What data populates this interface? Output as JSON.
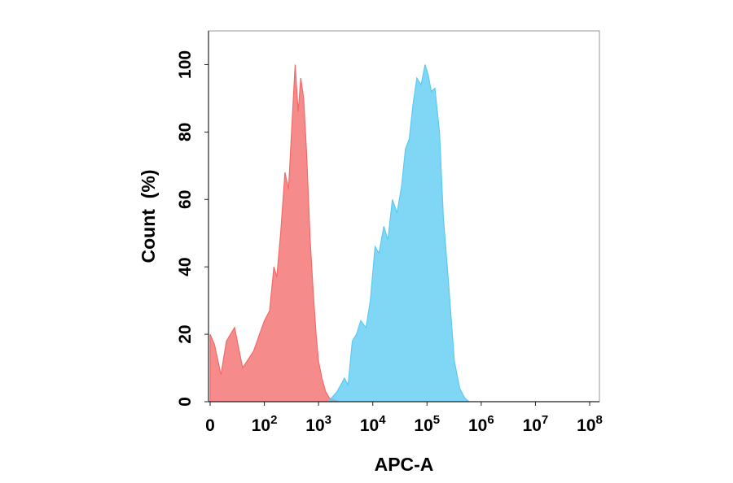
{
  "chart_data": {
    "type": "area",
    "xlabel": "APC-A",
    "ylabel": "Count  (%)",
    "x_scale": "biexponential",
    "xlim": [
      0,
      100000000
    ],
    "ylim": [
      0,
      110
    ],
    "grid": false,
    "legend": "none",
    "x_ticks": [
      {
        "value": 0,
        "base": "0",
        "exp": ""
      },
      {
        "value": 100,
        "base": "10",
        "exp": "2"
      },
      {
        "value": 1000,
        "base": "10",
        "exp": "3"
      },
      {
        "value": 10000,
        "base": "10",
        "exp": "4"
      },
      {
        "value": 100000,
        "base": "10",
        "exp": "5"
      },
      {
        "value": 1000000,
        "base": "10",
        "exp": "6"
      },
      {
        "value": 10000000,
        "base": "10",
        "exp": "7"
      },
      {
        "value": 100000000,
        "base": "10",
        "exp": "8"
      }
    ],
    "y_ticks": [
      0,
      20,
      40,
      60,
      80,
      100
    ],
    "series": [
      {
        "color": "#f46a6a",
        "x": [
          0,
          8,
          20,
          30,
          45,
          60,
          80,
          100,
          125,
          150,
          170,
          200,
          240,
          280,
          320,
          370,
          420,
          470,
          530,
          600,
          700,
          800,
          900,
          1000,
          1150,
          1350,
          1600,
          2000,
          2500
        ],
        "y": [
          20,
          17,
          8,
          18,
          22,
          10,
          15,
          24,
          27,
          40,
          37,
          50,
          68,
          63,
          81,
          100,
          86,
          96,
          90,
          74,
          48,
          32,
          20,
          12,
          7,
          3,
          1,
          0.4,
          0
        ]
      },
      {
        "color": "#5ccbf2",
        "x": [
          1500,
          2200,
          3000,
          3500,
          4200,
          5000,
          6000,
          7500,
          9000,
          11000,
          13000,
          16000,
          19000,
          23000,
          28000,
          34000,
          40000,
          47000,
          55000,
          65000,
          78000,
          92000,
          105000,
          120000,
          140000,
          170000,
          200000,
          250000,
          320000,
          400000,
          500000,
          600000
        ],
        "y": [
          0,
          3,
          7,
          5,
          18,
          20,
          24,
          22,
          30,
          46,
          44,
          52,
          48,
          60,
          56,
          64,
          75,
          78,
          88,
          96,
          94,
          100,
          97,
          92,
          93,
          80,
          55,
          35,
          12,
          4,
          1,
          0
        ]
      }
    ]
  }
}
